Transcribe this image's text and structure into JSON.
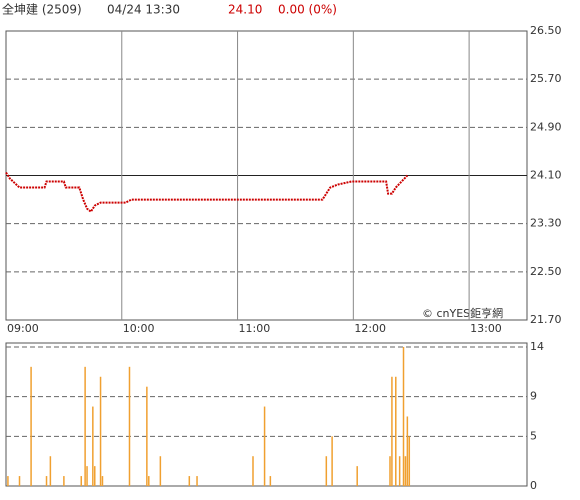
{
  "header": {
    "name": "全坤建 (2509)",
    "time": "04/24 13:30",
    "price": "24.10",
    "change": "0.00 (0%)"
  },
  "watermark": "© cnYES鉅亨網",
  "chart_data": [
    {
      "type": "line",
      "x": [
        "09:00",
        "09:02",
        "09:07",
        "09:20",
        "09:21",
        "09:30",
        "09:31",
        "09:38",
        "09:40",
        "09:42",
        "09:44",
        "09:46",
        "09:49",
        "10:02",
        "10:05",
        "11:44",
        "11:48",
        "11:52",
        "11:59",
        "12:02",
        "12:17",
        "12:18",
        "12:20",
        "12:22",
        "12:25",
        "12:28"
      ],
      "series": [
        {
          "color": "#cc0000",
          "values": [
            24.15,
            24.05,
            23.9,
            23.9,
            24.0,
            24.0,
            23.9,
            23.9,
            23.7,
            23.55,
            23.5,
            23.6,
            23.65,
            23.65,
            23.7,
            23.7,
            23.9,
            23.95,
            24.0,
            24.0,
            24.0,
            23.8,
            23.8,
            23.9,
            24.0,
            24.1
          ]
        }
      ],
      "xlim": [
        "09:00",
        "13:30"
      ],
      "xticks": [
        "09:00",
        "10:00",
        "11:00",
        "12:00",
        "13:00"
      ],
      "ylim": [
        21.7,
        26.5
      ],
      "yticks": [
        {
          "value": 21.7,
          "label": "21.70"
        },
        {
          "value": 22.5,
          "label": "22.50"
        },
        {
          "value": 23.3,
          "label": "23.30"
        },
        {
          "value": 24.1,
          "label": "24.10"
        },
        {
          "value": 24.9,
          "label": "24.90"
        },
        {
          "value": 25.7,
          "label": "25.70"
        },
        {
          "value": 26.5,
          "label": "26.50"
        }
      ],
      "reference_line": 24.1,
      "grid": true
    },
    {
      "type": "bar",
      "x": [
        "09:01",
        "09:07",
        "09:13",
        "09:21",
        "09:23",
        "09:30",
        "09:39",
        "09:41",
        "09:42",
        "09:45",
        "09:46",
        "09:49",
        "09:50",
        "10:04",
        "10:13",
        "10:14",
        "10:20",
        "10:35",
        "10:39",
        "11:08",
        "11:14",
        "11:17",
        "11:46",
        "11:49",
        "12:02",
        "12:19",
        "12:20",
        "12:22",
        "12:24",
        "12:26",
        "12:27",
        "12:28",
        "12:29"
      ],
      "values": [
        1,
        1,
        12,
        1,
        3,
        1,
        1,
        12,
        2,
        8,
        2,
        11,
        1,
        12,
        10,
        1,
        3,
        1,
        1,
        3,
        8,
        1,
        3,
        5,
        2,
        3,
        11,
        11,
        3,
        14,
        3,
        7,
        5
      ],
      "color": "#f0a030",
      "xlim": [
        "09:00",
        "13:30"
      ],
      "ylim": [
        0,
        14.4
      ],
      "yticks": [
        0,
        5,
        9,
        14
      ],
      "grid": true
    }
  ]
}
